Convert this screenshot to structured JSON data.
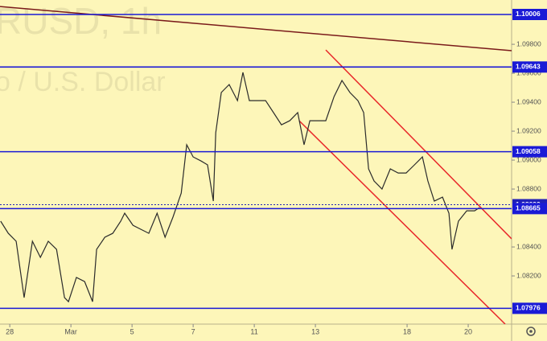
{
  "chart_data": {
    "type": "line",
    "symbol": "RUSD, 1h",
    "description": "o / U.S. Dollar",
    "color": "#2b2b2b",
    "x": [
      -0.3,
      -0.05,
      0.21,
      0.47,
      0.74,
      1,
      1.26,
      1.53,
      1.79,
      1.92,
      2.18,
      2.45,
      2.71,
      2.84,
      3.11,
      3.37,
      3.63,
      3.76,
      4.03,
      4.29,
      4.55,
      4.82,
      5.08,
      5.34,
      5.61,
      5.79,
      6,
      6.26,
      6.47,
      6.66,
      6.74,
      6.92,
      7.18,
      7.45,
      7.63,
      7.84,
      8.11,
      8.37,
      8.63,
      8.89,
      9.16,
      9.42,
      9.63,
      9.82,
      10.08,
      10.34,
      10.61,
      10.87,
      11.13,
      11.39,
      11.58,
      11.74,
      11.92,
      12.18,
      12.45,
      12.71,
      12.97,
      13.24,
      13.5,
      13.68,
      13.89,
      14.16,
      14.37,
      14.47,
      14.68,
      14.95,
      15.21,
      15.37
    ],
    "values": [
      1.08578,
      1.08494,
      1.08439,
      1.0805,
      1.08439,
      1.08328,
      1.08439,
      1.08383,
      1.0805,
      1.08022,
      1.08189,
      1.08161,
      1.08022,
      1.08383,
      1.08467,
      1.08494,
      1.08578,
      1.08633,
      1.0855,
      1.08522,
      1.08494,
      1.08633,
      1.08467,
      1.08606,
      1.08772,
      1.09106,
      1.09022,
      1.08994,
      1.08967,
      1.08717,
      1.09189,
      1.09467,
      1.09522,
      1.09411,
      1.09606,
      1.09411,
      1.09411,
      1.09411,
      1.09328,
      1.09244,
      1.09272,
      1.09328,
      1.09106,
      1.09272,
      1.09272,
      1.09272,
      1.09439,
      1.0955,
      1.09467,
      1.09411,
      1.09328,
      1.08939,
      1.08856,
      1.088,
      1.08939,
      1.08911,
      1.08911,
      1.08967,
      1.09022,
      1.08856,
      1.08717,
      1.08744,
      1.08633,
      1.08383,
      1.08578,
      1.0865,
      1.0865,
      1.08672
    ],
    "xlim": [
      -0.32,
      16.42
    ],
    "ylim": [
      1.07867,
      1.10106
    ],
    "xticks": [
      {
        "value": 0,
        "label": "28"
      },
      {
        "value": 2,
        "label": "Mar"
      },
      {
        "value": 4,
        "label": "5"
      },
      {
        "value": 6,
        "label": "7"
      },
      {
        "value": 8,
        "label": "11"
      },
      {
        "value": 10,
        "label": "13"
      },
      {
        "value": 13,
        "label": "18"
      },
      {
        "value": 15,
        "label": "20"
      }
    ],
    "yticks": [
      {
        "value": 1.098,
        "label": "1.09800"
      },
      {
        "value": 1.096,
        "label": "1.09600"
      },
      {
        "value": 1.094,
        "label": "1.09400"
      },
      {
        "value": 1.092,
        "label": "1.09200"
      },
      {
        "value": 1.09,
        "label": "1.09000"
      },
      {
        "value": 1.088,
        "label": "1.08800"
      },
      {
        "value": 1.084,
        "label": "1.08400"
      },
      {
        "value": 1.082,
        "label": "1.08200"
      }
    ],
    "levels": [
      {
        "value": 1.10006,
        "color": "#1a1ad6"
      },
      {
        "value": 1.09643,
        "color": "#1a1ad6"
      },
      {
        "value": 1.09058,
        "color": "#1a1ad6"
      },
      {
        "value": 1.08665,
        "color": "#1a1ad6"
      },
      {
        "value": 1.07976,
        "color": "#1a1ad6"
      }
    ],
    "last_price": {
      "value": 1.08692,
      "color": "#2020b8"
    },
    "trendlines": [
      {
        "color": "#7a1a1a",
        "x": [
          -0.32,
          16.42
        ],
        "y": [
          1.10061,
          1.09756
        ]
      },
      {
        "color": "#e8282a",
        "x": [
          10.34,
          16.42
        ],
        "y": [
          1.09761,
          1.08456
        ]
      },
      {
        "color": "#e8282a",
        "x": [
          9.47,
          16.21
        ],
        "y": [
          1.09272,
          1.07867
        ]
      }
    ]
  }
}
